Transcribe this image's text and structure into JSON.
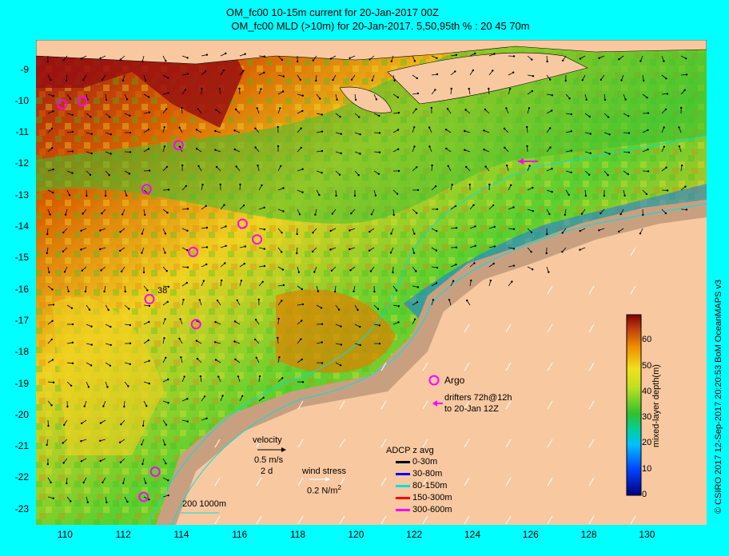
{
  "titles": {
    "line1": "OM_fc00 10-15m current for 20-Jan-2017 00Z",
    "line2": "OM_fc00 MLD (>10m) for 20-Jan-2017. 5,50,95th % : 20  45  70m"
  },
  "axes": {
    "y_ticks": [
      "-9",
      "-10",
      "-11",
      "-12",
      "-13",
      "-14",
      "-15",
      "-16",
      "-17",
      "-18",
      "-19",
      "-20",
      "-21",
      "-22",
      "-23"
    ],
    "x_ticks": [
      "110",
      "112",
      "114",
      "116",
      "118",
      "120",
      "122",
      "124",
      "126",
      "128",
      "130"
    ]
  },
  "colorbar": {
    "label": "mixed-layer depth(m)",
    "ticks": [
      "0",
      "10",
      "20",
      "30",
      "40",
      "50",
      "60"
    ],
    "range": [
      0,
      70
    ]
  },
  "legend": {
    "velocity_label": "velocity",
    "velocity_scale": "0.5 m/s",
    "velocity_duration": "2 d",
    "wind_label": "wind stress",
    "wind_scale": "0.2 N/m",
    "wind_scale_sup": "2",
    "isobaths": "200  1000m",
    "argo": "Argo",
    "drifters_line1": "drifters 72h@12h",
    "drifters_line2": "to 20-Jan 12Z",
    "adcp_title": "ADCP z avg",
    "adcp_rows": [
      {
        "label": "0-30m",
        "color": "#000000"
      },
      {
        "label": "30-80m",
        "color": "#0000ff"
      },
      {
        "label": "80-150m",
        "color": "#00e0e0"
      },
      {
        "label": "150-300m",
        "color": "#ff0000"
      },
      {
        "label": "300-600m",
        "color": "#ff00ff"
      }
    ]
  },
  "argo_floats": [
    {
      "lon": 109.9,
      "lat": -10.1
    },
    {
      "lon": 110.6,
      "lat": -10.0
    },
    {
      "lon": 113.9,
      "lat": -11.4
    },
    {
      "lon": 112.8,
      "lat": -12.8
    },
    {
      "lon": 116.1,
      "lat": -13.9
    },
    {
      "lon": 116.6,
      "lat": -14.4
    },
    {
      "lon": 114.4,
      "lat": -14.8
    },
    {
      "lon": 112.9,
      "lat": -16.3
    },
    {
      "lon": 114.5,
      "lat": -17.1
    },
    {
      "lon": 113.1,
      "lat": -21.8
    },
    {
      "lon": 112.7,
      "lat": -22.6
    }
  ],
  "argo_annotation": "38",
  "credit": "© CSIRO 2017   12-Sep-2017 20:20:53 BoM OceanMAPS v3",
  "colors": {
    "land": "#f8c8a0",
    "shelf": "#c8a080",
    "ocean_bg": "#00ffff"
  }
}
